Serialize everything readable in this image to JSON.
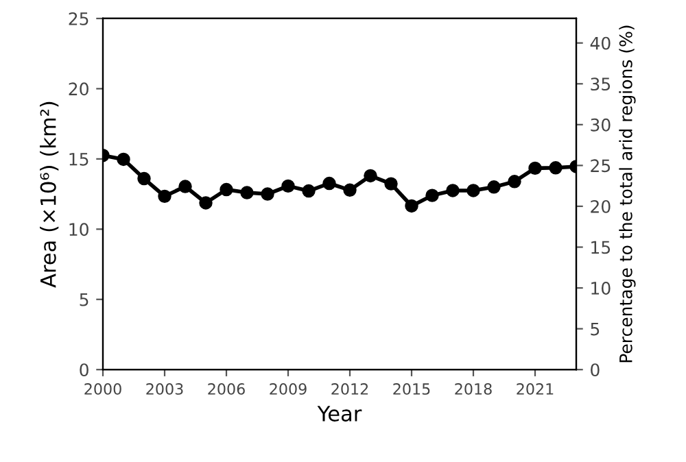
{
  "chart_data": {
    "type": "line",
    "xlabel": "Year",
    "ylabel": "Area (×10⁶) (km²)",
    "y2label": "Percentage to the total arid regions (%)",
    "x": [
      2000,
      2001,
      2002,
      2003,
      2004,
      2005,
      2006,
      2007,
      2008,
      2009,
      2010,
      2011,
      2012,
      2013,
      2014,
      2015,
      2016,
      2017,
      2018,
      2019,
      2020,
      2021,
      2022,
      2023
    ],
    "series": [
      {
        "color": "#000000",
        "values": [
          15.25,
          14.97,
          13.6,
          12.34,
          13.04,
          11.87,
          12.82,
          12.6,
          12.5,
          13.07,
          12.72,
          13.26,
          12.78,
          13.8,
          13.23,
          11.65,
          12.4,
          12.75,
          12.75,
          13.0,
          13.39,
          14.34,
          14.37,
          14.46
        ]
      }
    ],
    "xlim": [
      2000,
      2023
    ],
    "xticks": [
      2000,
      2003,
      2006,
      2009,
      2012,
      2015,
      2018,
      2021
    ],
    "ylim": [
      0,
      25
    ],
    "yticks": [
      0,
      5,
      10,
      15,
      20,
      25
    ],
    "y2lim": [
      0,
      43
    ],
    "y2ticks": [
      0,
      5,
      10,
      15,
      20,
      25,
      30,
      35,
      40
    ],
    "marker": "circle",
    "line_style": "solid",
    "grid": false,
    "legend": false
  }
}
